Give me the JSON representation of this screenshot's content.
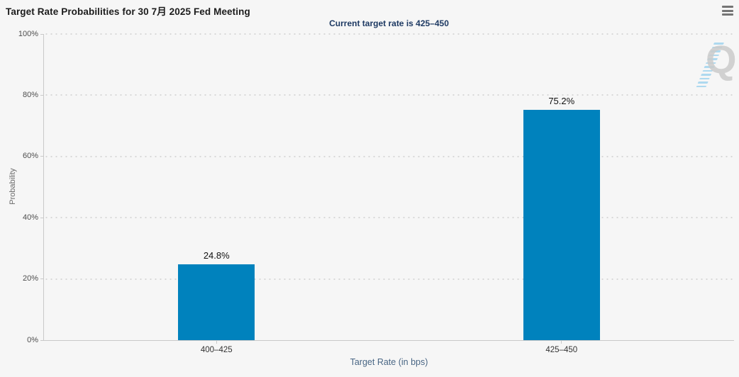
{
  "header": {
    "title": "Target Rate Probabilities for 30 7月 2025 Fed Meeting",
    "subtitle": "Current target rate is 425–450"
  },
  "menu": {
    "icon": "hamburger-icon"
  },
  "watermark": {
    "letter": "Q"
  },
  "chart_data": {
    "type": "bar",
    "title": "Target Rate Probabilities for 30 7月 2025 Fed Meeting",
    "subtitle": "Current target rate is 425–450",
    "categories": [
      "400–425",
      "425–450"
    ],
    "values": [
      24.8,
      75.2
    ],
    "value_labels": [
      "24.8%",
      "75.2%"
    ],
    "xlabel": "Target Rate (in bps)",
    "ylabel": "Probability",
    "ylim": [
      0,
      100
    ],
    "ytick_step": 20,
    "yticks": [
      "0%",
      "20%",
      "40%",
      "60%",
      "80%",
      "100%"
    ],
    "grid": "horizontal-dotted",
    "legend": "none",
    "bar_color": "#0082BD"
  },
  "colors": {
    "background": "#F6F6F6",
    "bar": "#0082BD",
    "title_text": "#1C1C1C",
    "subtitle_text": "#1E3A63",
    "axis_title_text": "#4A6785",
    "tick_label_text": "#4D4D4D",
    "gridline": "#D7D7D7",
    "axis_line": "#C9C9C9",
    "watermark_gray": "#CBCBCB",
    "watermark_blue": "#AED9EF",
    "menu_icon": "#757575"
  }
}
